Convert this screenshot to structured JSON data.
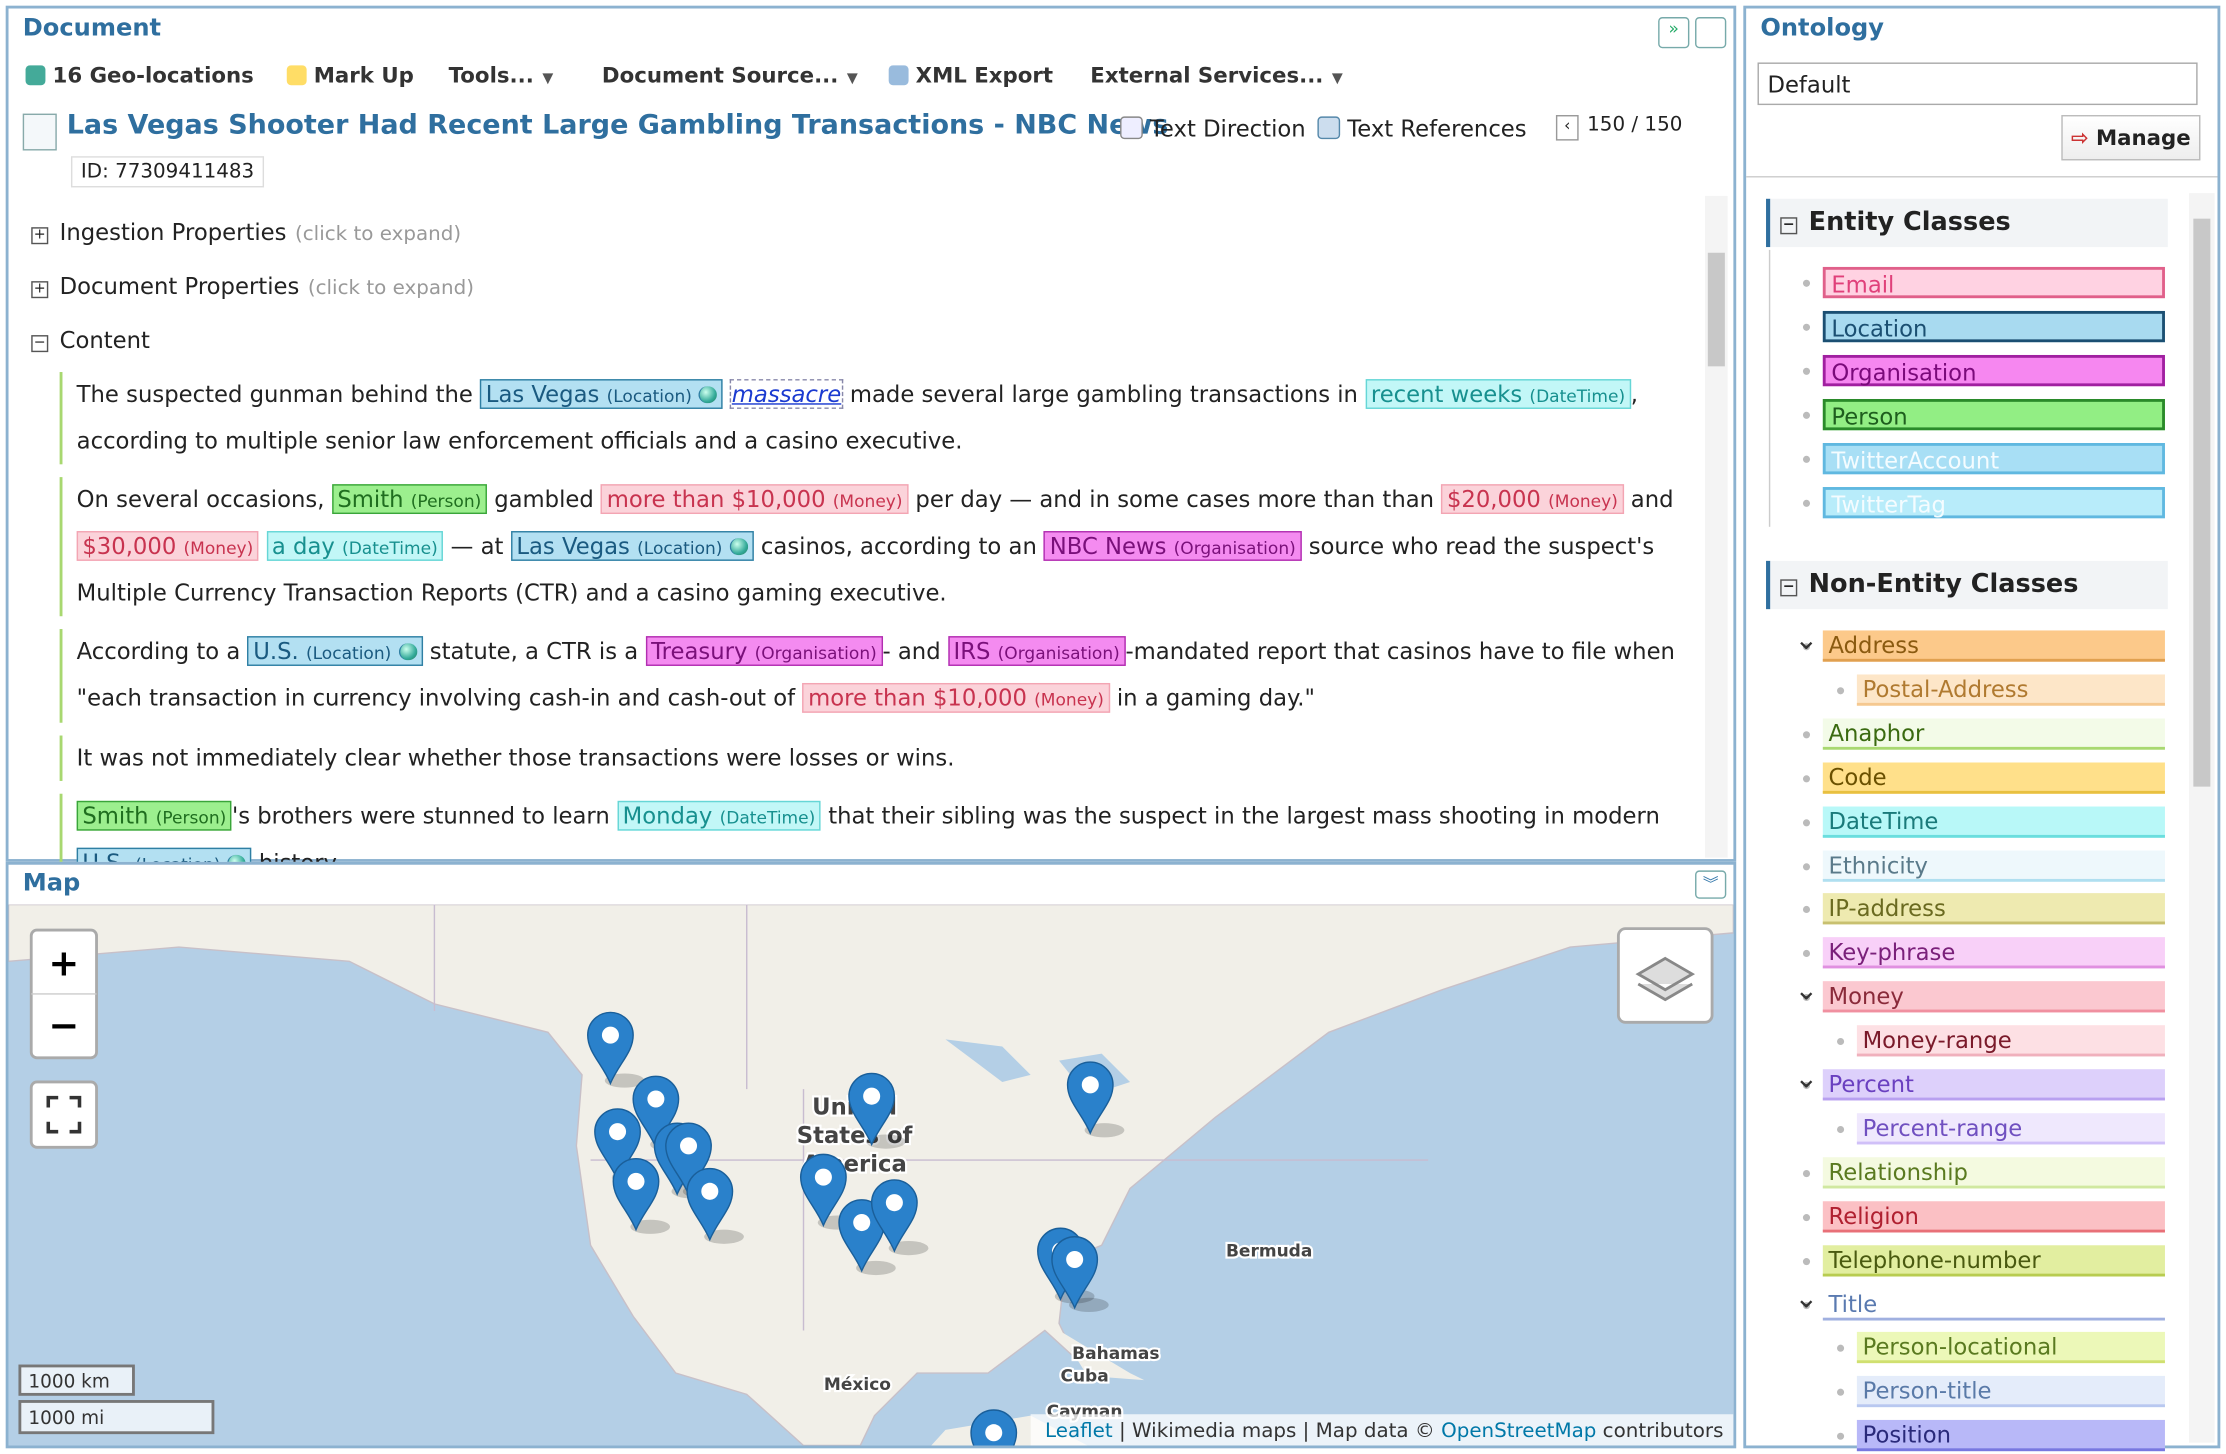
{
  "document": {
    "title": "Document",
    "toolbar": [
      "16 Geo-locations",
      "Mark Up",
      "Tools...",
      "Document Source...",
      "XML Export",
      "External Services..."
    ],
    "article_title": "Las Vegas Shooter Had Recent Large Gambling Transactions - NBC News",
    "id": "ID: 77309411483",
    "text_direction": "Text Direction",
    "text_references": "Text References",
    "pager": "150 / 150",
    "sections": [
      {
        "name": "Ingestion Properties",
        "hint": "(click to expand)"
      },
      {
        "name": "Document Properties",
        "hint": "(click to expand)"
      },
      {
        "name": "Content"
      }
    ],
    "paragraphs": [
      [
        "The suspected gunman behind the ",
        {
          "text": "Las Vegas",
          "tag": "(Location)",
          "color": "#b3e0f2",
          "border": "#2f7fa3",
          "ink": "#1a5a80",
          "geo": true
        },
        " ",
        {
          "text": "massacre",
          "link": true
        },
        " made several large gambling transactions in ",
        {
          "text": "recent weeks",
          "tag": "(DateTime)",
          "color": "#c2f7f7",
          "border": "#66d6d6",
          "ink": "#17908f"
        },
        ", according to multiple senior law enforcement officials and a casino executive."
      ],
      [
        "On several occasions, ",
        {
          "text": "Smith",
          "tag": "(Person)",
          "color": "#9cef8e",
          "border": "#3aa53a",
          "ink": "#1f6e1f"
        },
        " gambled ",
        {
          "text": "more than $10,000",
          "tag": "(Money)",
          "color": "#fbd3da",
          "border": "#f3a5b3",
          "ink": "#c8334f"
        },
        " per day — and in some cases more than than ",
        {
          "text": "$20,000",
          "tag": "(Money)",
          "color": "#fbd3da",
          "border": "#f3a5b3",
          "ink": "#c8334f"
        },
        " and ",
        {
          "text": "$30,000",
          "tag": "(Money)",
          "color": "#fbd3da",
          "border": "#f3a5b3",
          "ink": "#c8334f"
        },
        " ",
        {
          "text": "a day",
          "tag": "(DateTime)",
          "color": "#c2f7f7",
          "border": "#66d6d6",
          "ink": "#17908f"
        },
        " — at ",
        {
          "text": "Las Vegas",
          "tag": "(Location)",
          "color": "#b3e0f2",
          "border": "#2f7fa3",
          "ink": "#1a5a80",
          "geo": true
        },
        " casinos, according to an ",
        {
          "text": "NBC News",
          "tag": "(Organisation)",
          "color": "#f48bf0",
          "border": "#b12fb0",
          "ink": "#7a107a"
        },
        " source who read the suspect's Multiple Currency Transaction Reports (CTR) and a casino gaming executive."
      ],
      [
        "According to a ",
        {
          "text": "U.S.",
          "tag": "(Location)",
          "color": "#b3e0f2",
          "border": "#2f7fa3",
          "ink": "#1a5a80",
          "geo": true
        },
        " statute, a CTR is a ",
        {
          "text": "Treasury",
          "tag": "(Organisation)",
          "color": "#f48bf0",
          "border": "#b12fb0",
          "ink": "#7a107a"
        },
        "- and ",
        {
          "text": "IRS",
          "tag": "(Organisation)",
          "color": "#f48bf0",
          "border": "#b12fb0",
          "ink": "#7a107a"
        },
        "-mandated report that casinos have to file when \"each transaction in currency involving cash-in and cash-out of ",
        {
          "text": "more than $10,000",
          "tag": "(Money)",
          "color": "#fbd3da",
          "border": "#f3a5b3",
          "ink": "#c8334f"
        },
        " in a gaming day.\""
      ],
      [
        "It was not immediately clear whether those transactions were losses or wins."
      ],
      [
        {
          "text": "Smith",
          "tag": "(Person)",
          "color": "#9cef8e",
          "border": "#3aa53a",
          "ink": "#1f6e1f"
        },
        "'s brothers were stunned to learn ",
        {
          "text": "Monday",
          "tag": "(DateTime)",
          "color": "#c2f7f7",
          "border": "#66d6d6",
          "ink": "#17908f"
        },
        " that their sibling was the suspect in the largest mass shooting in modern ",
        {
          "text": "U.S.",
          "tag": "(Location)",
          "color": "#b3e0f2",
          "border": "#2f7fa3",
          "ink": "#1a5a80",
          "geo": true
        },
        " history."
      ]
    ]
  },
  "map": {
    "title": "Map",
    "zoom_in": "+",
    "zoom_out": "−",
    "labels": [
      "United",
      "States of",
      "America",
      "Bermuda",
      "Bahamas",
      "Cuba",
      "México",
      "Cayman"
    ],
    "scale": [
      "1000 km",
      "1000 mi"
    ],
    "attribution": [
      "Leaflet",
      " | Wikimedia maps | Map data © ",
      "OpenStreetMap",
      " contributors"
    ]
  },
  "ontology": {
    "title": "Ontology",
    "selected": "Default",
    "manage": "Manage",
    "entity_title": "Entity Classes",
    "entity_classes": [
      {
        "name": "Email",
        "color": "#ffd2e2",
        "border": "#e0608a",
        "ink": "#e0407a"
      },
      {
        "name": "Location",
        "color": "#a8daf0",
        "border": "#1b4f72",
        "ink": "#1b4f72"
      },
      {
        "name": "Organisation",
        "color": "#f687f0",
        "border": "#a020a0",
        "ink": "#7a0a7a"
      },
      {
        "name": "Person",
        "color": "#92ee84",
        "border": "#2a8a2a",
        "ink": "#1e5e1e"
      },
      {
        "name": "TwitterAccount",
        "color": "#a8dff5",
        "border": "#60b8e0",
        "ink": "#f4fcff"
      },
      {
        "name": "TwitterTag",
        "color": "#b8ecfa",
        "border": "#60b8e0",
        "ink": "#f4fcff"
      }
    ],
    "nonentity_title": "Non-Entity Classes",
    "nonentity_classes": [
      {
        "name": "Address",
        "color": "#fcc98a",
        "border": "#e0a050",
        "ink": "#8a5a10",
        "level": 0,
        "expanded": true
      },
      {
        "name": "Postal-Address",
        "color": "#fde6c8",
        "border": "#f5c890",
        "ink": "#b07a30",
        "level": 1
      },
      {
        "name": "Anaphor",
        "color": "#f3fbe8",
        "border": "#a8d870",
        "ink": "#3a6a10",
        "level": 0
      },
      {
        "name": "Code",
        "color": "#ffe08a",
        "border": "#e8c040",
        "ink": "#6a5000",
        "level": 0
      },
      {
        "name": "DateTime",
        "color": "#b8f8f8",
        "border": "#6adede",
        "ink": "#1a7a7a",
        "level": 0
      },
      {
        "name": "Ethnicity",
        "color": "#eef8fc",
        "border": "#b0dff0",
        "ink": "#5a7a8a",
        "level": 0
      },
      {
        "name": "IP-address",
        "color": "#eeeab0",
        "border": "#c8c070",
        "ink": "#6a6a20",
        "level": 0
      },
      {
        "name": "Key-phrase",
        "color": "#f8d0f8",
        "border": "#e090e0",
        "ink": "#7a207a",
        "level": 0
      },
      {
        "name": "Money",
        "color": "#fbc8d0",
        "border": "#f090a0",
        "ink": "#8a2a3a",
        "level": 0,
        "expanded": true
      },
      {
        "name": "Money-range",
        "color": "#fde0e4",
        "border": "#f0b0bc",
        "ink": "#7a1a2a",
        "level": 1
      },
      {
        "name": "Percent",
        "color": "#ddd0fb",
        "border": "#b8a0f0",
        "ink": "#6a40c0",
        "level": 0,
        "expanded": true
      },
      {
        "name": "Percent-range",
        "color": "#efe8fd",
        "border": "#d0c0f8",
        "ink": "#7050c0",
        "level": 1
      },
      {
        "name": "Relationship",
        "color": "#f4fae0",
        "border": "#d0e8a0",
        "ink": "#5a7a20",
        "level": 0
      },
      {
        "name": "Religion",
        "color": "#fbc0c4",
        "border": "#e87078",
        "ink": "#b02030",
        "level": 0
      },
      {
        "name": "Telephone-number",
        "color": "#e2eea0",
        "border": "#b8cc50",
        "ink": "#4a5a10",
        "level": 0
      },
      {
        "name": "Title",
        "color": "#ffffff",
        "border": "#a0b0e0",
        "ink": "#5a7ab0",
        "level": 0,
        "expanded": true
      },
      {
        "name": "Person-locational",
        "color": "#ecf8b8",
        "border": "#d0e070",
        "ink": "#5a7a20",
        "level": 1
      },
      {
        "name": "Person-title",
        "color": "#e4ecfa",
        "border": "#b8c8f0",
        "ink": "#5a7aa8",
        "level": 1
      },
      {
        "name": "Position",
        "color": "#b8b8f8",
        "border": "#7878e0",
        "ink": "#2a2a7a",
        "level": 1
      }
    ]
  }
}
